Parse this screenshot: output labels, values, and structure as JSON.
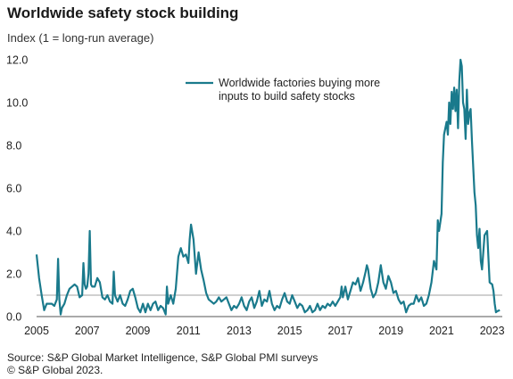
{
  "title": "Worldwide safety stock building",
  "subtitle": "Index (1 = long-run average)",
  "footer": {
    "source": "Source: S&P Global Market Intelligence, S&P Global PMI surveys",
    "copyright": "© S&P Global 2023."
  },
  "colors": {
    "series": "#1a7a8c",
    "reference": "#b5b5b5",
    "text": "#222222"
  },
  "chart_data": {
    "type": "line",
    "title": "Worldwide safety stock building",
    "ylabel": "Index (1 = long-run average)",
    "xlabel": "",
    "xlim": [
      2005.0,
      2023.4
    ],
    "ylim": [
      0,
      12
    ],
    "x_ticks": [
      "2005",
      "2007",
      "2009",
      "2011",
      "2013",
      "2015",
      "2017",
      "2019",
      "2021",
      "2023"
    ],
    "y_ticks": [
      "0.0",
      "2.0",
      "4.0",
      "6.0",
      "8.0",
      "10.0",
      "12.0"
    ],
    "grid": false,
    "legend": {
      "position": "top-center",
      "label_lines": [
        "Worldwide factories buying more",
        "inputs to build safety stocks"
      ]
    },
    "reference_line": {
      "y": 1.0
    },
    "series": [
      {
        "name": "Worldwide factories buying more inputs to build safety stocks",
        "points": [
          [
            2005.0,
            2.9
          ],
          [
            2005.1,
            1.8
          ],
          [
            2005.2,
            1.0
          ],
          [
            2005.3,
            0.3
          ],
          [
            2005.4,
            0.6
          ],
          [
            2005.5,
            0.6
          ],
          [
            2005.6,
            0.6
          ],
          [
            2005.7,
            0.5
          ],
          [
            2005.8,
            0.8
          ],
          [
            2005.85,
            2.7
          ],
          [
            2005.9,
            0.8
          ],
          [
            2005.95,
            0.1
          ],
          [
            2006.0,
            0.4
          ],
          [
            2006.1,
            0.6
          ],
          [
            2006.2,
            1.0
          ],
          [
            2006.3,
            1.3
          ],
          [
            2006.4,
            1.4
          ],
          [
            2006.5,
            1.5
          ],
          [
            2006.6,
            1.4
          ],
          [
            2006.7,
            0.9
          ],
          [
            2006.8,
            1.0
          ],
          [
            2006.85,
            2.5
          ],
          [
            2006.9,
            1.5
          ],
          [
            2006.95,
            1.3
          ],
          [
            2007.0,
            1.4
          ],
          [
            2007.05,
            2.0
          ],
          [
            2007.1,
            4.0
          ],
          [
            2007.15,
            1.5
          ],
          [
            2007.2,
            1.4
          ],
          [
            2007.3,
            1.4
          ],
          [
            2007.4,
            1.8
          ],
          [
            2007.5,
            1.6
          ],
          [
            2007.6,
            0.9
          ],
          [
            2007.7,
            0.8
          ],
          [
            2007.8,
            1.0
          ],
          [
            2007.9,
            0.7
          ],
          [
            2008.0,
            0.6
          ],
          [
            2008.05,
            2.1
          ],
          [
            2008.1,
            1.0
          ],
          [
            2008.2,
            0.7
          ],
          [
            2008.3,
            1.0
          ],
          [
            2008.4,
            0.6
          ],
          [
            2008.5,
            0.5
          ],
          [
            2008.6,
            0.8
          ],
          [
            2008.7,
            1.2
          ],
          [
            2008.8,
            1.3
          ],
          [
            2008.9,
            0.9
          ],
          [
            2009.0,
            0.4
          ],
          [
            2009.1,
            0.2
          ],
          [
            2009.2,
            0.6
          ],
          [
            2009.3,
            0.2
          ],
          [
            2009.4,
            0.6
          ],
          [
            2009.5,
            0.3
          ],
          [
            2009.6,
            0.6
          ],
          [
            2009.7,
            0.7
          ],
          [
            2009.8,
            0.3
          ],
          [
            2009.9,
            0.5
          ],
          [
            2010.0,
            0.4
          ],
          [
            2010.1,
            0.1
          ],
          [
            2010.15,
            1.4
          ],
          [
            2010.2,
            0.6
          ],
          [
            2010.3,
            1.0
          ],
          [
            2010.4,
            0.6
          ],
          [
            2010.5,
            1.3
          ],
          [
            2010.6,
            2.8
          ],
          [
            2010.7,
            3.2
          ],
          [
            2010.8,
            2.8
          ],
          [
            2010.9,
            2.9
          ],
          [
            2011.0,
            2.5
          ],
          [
            2011.05,
            3.6
          ],
          [
            2011.1,
            4.3
          ],
          [
            2011.2,
            3.6
          ],
          [
            2011.3,
            2.0
          ],
          [
            2011.4,
            3.0
          ],
          [
            2011.5,
            2.2
          ],
          [
            2011.6,
            1.7
          ],
          [
            2011.7,
            1.1
          ],
          [
            2011.8,
            0.8
          ],
          [
            2011.9,
            0.7
          ],
          [
            2012.0,
            0.6
          ],
          [
            2012.1,
            0.7
          ],
          [
            2012.2,
            0.9
          ],
          [
            2012.3,
            0.7
          ],
          [
            2012.4,
            0.8
          ],
          [
            2012.5,
            0.9
          ],
          [
            2012.6,
            0.6
          ],
          [
            2012.7,
            0.3
          ],
          [
            2012.8,
            0.5
          ],
          [
            2012.9,
            0.4
          ],
          [
            2013.0,
            0.6
          ],
          [
            2013.1,
            0.9
          ],
          [
            2013.2,
            0.5
          ],
          [
            2013.3,
            0.3
          ],
          [
            2013.4,
            0.7
          ],
          [
            2013.5,
            0.9
          ],
          [
            2013.6,
            0.4
          ],
          [
            2013.7,
            0.7
          ],
          [
            2013.8,
            1.2
          ],
          [
            2013.9,
            0.5
          ],
          [
            2014.0,
            0.8
          ],
          [
            2014.1,
            0.7
          ],
          [
            2014.2,
            1.2
          ],
          [
            2014.3,
            0.6
          ],
          [
            2014.4,
            0.3
          ],
          [
            2014.5,
            0.5
          ],
          [
            2014.6,
            0.4
          ],
          [
            2014.7,
            0.8
          ],
          [
            2014.8,
            1.1
          ],
          [
            2014.9,
            0.7
          ],
          [
            2015.0,
            0.6
          ],
          [
            2015.1,
            1.0
          ],
          [
            2015.2,
            0.7
          ],
          [
            2015.3,
            0.4
          ],
          [
            2015.4,
            0.6
          ],
          [
            2015.5,
            0.5
          ],
          [
            2015.6,
            0.2
          ],
          [
            2015.7,
            0.3
          ],
          [
            2015.8,
            0.5
          ],
          [
            2015.9,
            0.2
          ],
          [
            2016.0,
            0.3
          ],
          [
            2016.1,
            0.6
          ],
          [
            2016.2,
            0.3
          ],
          [
            2016.3,
            0.5
          ],
          [
            2016.4,
            0.4
          ],
          [
            2016.5,
            0.6
          ],
          [
            2016.6,
            0.5
          ],
          [
            2016.7,
            0.7
          ],
          [
            2016.8,
            0.5
          ],
          [
            2016.9,
            0.7
          ],
          [
            2017.0,
            0.9
          ],
          [
            2017.05,
            1.4
          ],
          [
            2017.1,
            0.9
          ],
          [
            2017.2,
            1.4
          ],
          [
            2017.3,
            0.8
          ],
          [
            2017.4,
            1.2
          ],
          [
            2017.5,
            1.6
          ],
          [
            2017.6,
            1.5
          ],
          [
            2017.7,
            1.8
          ],
          [
            2017.8,
            1.2
          ],
          [
            2017.9,
            1.6
          ],
          [
            2018.0,
            2.1
          ],
          [
            2018.05,
            2.4
          ],
          [
            2018.1,
            2.2
          ],
          [
            2018.2,
            1.3
          ],
          [
            2018.3,
            0.9
          ],
          [
            2018.4,
            1.1
          ],
          [
            2018.5,
            1.6
          ],
          [
            2018.6,
            2.4
          ],
          [
            2018.7,
            1.6
          ],
          [
            2018.8,
            1.3
          ],
          [
            2018.9,
            1.9
          ],
          [
            2019.0,
            1.6
          ],
          [
            2019.1,
            1.1
          ],
          [
            2019.2,
            1.2
          ],
          [
            2019.3,
            0.8
          ],
          [
            2019.4,
            0.6
          ],
          [
            2019.5,
            0.7
          ],
          [
            2019.6,
            0.2
          ],
          [
            2019.7,
            0.5
          ],
          [
            2019.8,
            0.6
          ],
          [
            2019.9,
            0.6
          ],
          [
            2020.0,
            1.0
          ],
          [
            2020.1,
            0.7
          ],
          [
            2020.2,
            0.9
          ],
          [
            2020.3,
            0.5
          ],
          [
            2020.4,
            0.6
          ],
          [
            2020.5,
            1.0
          ],
          [
            2020.6,
            1.6
          ],
          [
            2020.7,
            2.6
          ],
          [
            2020.8,
            2.2
          ],
          [
            2020.85,
            4.5
          ],
          [
            2020.9,
            4.0
          ],
          [
            2021.0,
            4.8
          ],
          [
            2021.05,
            7.2
          ],
          [
            2021.1,
            8.5
          ],
          [
            2021.2,
            9.1
          ],
          [
            2021.25,
            8.5
          ],
          [
            2021.3,
            10.0
          ],
          [
            2021.35,
            9.0
          ],
          [
            2021.4,
            10.5
          ],
          [
            2021.45,
            9.7
          ],
          [
            2021.5,
            10.7
          ],
          [
            2021.55,
            9.6
          ],
          [
            2021.6,
            10.6
          ],
          [
            2021.65,
            8.8
          ],
          [
            2021.7,
            11.0
          ],
          [
            2021.75,
            12.0
          ],
          [
            2021.8,
            11.7
          ],
          [
            2021.85,
            10.0
          ],
          [
            2021.9,
            9.7
          ],
          [
            2021.95,
            8.3
          ],
          [
            2022.0,
            10.6
          ],
          [
            2022.05,
            9.0
          ],
          [
            2022.1,
            9.5
          ],
          [
            2022.15,
            9.7
          ],
          [
            2022.2,
            8.2
          ],
          [
            2022.3,
            5.8
          ],
          [
            2022.35,
            5.2
          ],
          [
            2022.4,
            3.8
          ],
          [
            2022.45,
            3.2
          ],
          [
            2022.5,
            4.1
          ],
          [
            2022.55,
            2.6
          ],
          [
            2022.6,
            2.2
          ],
          [
            2022.7,
            3.8
          ],
          [
            2022.8,
            4.0
          ],
          [
            2022.9,
            1.6
          ],
          [
            2023.0,
            1.5
          ],
          [
            2023.05,
            1.2
          ],
          [
            2023.1,
            0.6
          ],
          [
            2023.15,
            0.2
          ],
          [
            2023.2,
            0.25
          ],
          [
            2023.3,
            0.3
          ]
        ]
      }
    ]
  }
}
